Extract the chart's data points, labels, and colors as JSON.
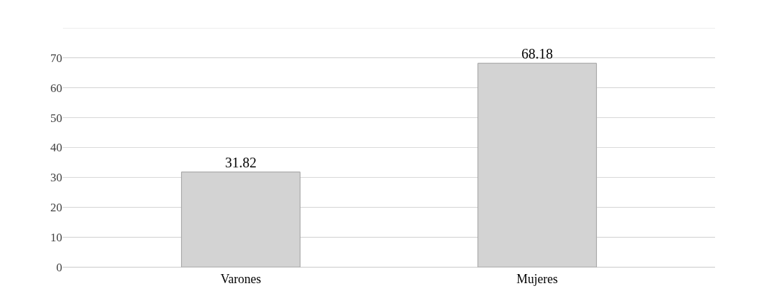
{
  "chart_data": {
    "type": "bar",
    "categories": [
      "Varones",
      "Mujeres"
    ],
    "values": [
      31.82,
      68.18
    ],
    "color": "#d3d3d3",
    "ylim": [
      0,
      80
    ],
    "yticks": [
      0,
      10,
      20,
      30,
      40,
      50,
      60,
      70,
      {
        "value": 80,
        "label": null
      }
    ],
    "grid": "y",
    "data_labels": true
  }
}
